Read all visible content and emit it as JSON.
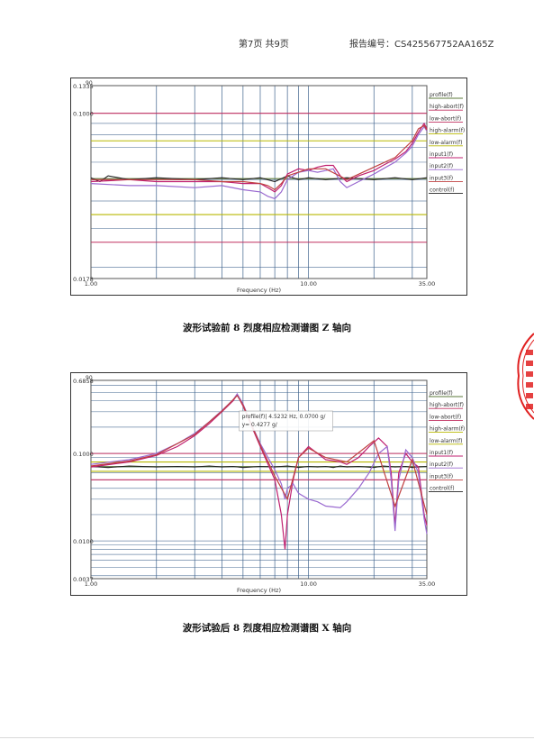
{
  "header": {
    "page_label": "第7页  共9页",
    "report_no": "报告编号：CS425567752AA165Z"
  },
  "colors": {
    "profile": "#5b7a3a",
    "high_abort": "#c03060",
    "low_abort": "#c03060",
    "high_alarm": "#b8b800",
    "low_alarm": "#b8b800",
    "input1": "#c02070",
    "input2": "#9a6ad0",
    "input3": "#c04040",
    "control": "#222222",
    "grid": "#3a5f8a",
    "stamp": "#e02020"
  },
  "chart_data": [
    {
      "type": "line",
      "title": "",
      "xlabel": "Frequency (Hz)",
      "ylabel": "",
      "x_scale": "log",
      "y_scale": "log",
      "xlim": [
        1.0,
        35.0
      ],
      "ylim": [
        0.0178,
        0.1335
      ],
      "corner_label": "90",
      "x_tick_labels": [
        "1.00",
        "10.00",
        "35.00"
      ],
      "x_ticks": [
        1,
        10,
        35
      ],
      "y_tick_labels": [
        "0.1335",
        "0.1000",
        "0.0178"
      ],
      "y_ticks": [
        0.1335,
        0.1,
        0.0178
      ],
      "legend": [
        "profile(f)",
        "high-abort(f)",
        "low-abort(f)",
        "high-alarm(f)",
        "low-alarm(f)",
        "input1(f)",
        "input2(f)",
        "input3(f)",
        "control(f)"
      ],
      "legend_placement": "right",
      "limit_lines": [
        {
          "name": "high-abort",
          "value": 0.1
        },
        {
          "name": "high-alarm",
          "value": 0.075
        },
        {
          "name": "low-alarm",
          "value": 0.0347
        },
        {
          "name": "low-abort",
          "value": 0.026
        }
      ],
      "series": [
        {
          "key": "profile",
          "x": [
            1,
            35
          ],
          "y": [
            0.0505,
            0.0505
          ]
        },
        {
          "key": "control",
          "x": [
            1,
            1.1,
            1.2,
            1.5,
            2,
            3,
            4,
            5,
            6,
            7,
            8,
            9,
            10,
            12,
            15,
            20,
            25,
            30,
            35
          ],
          "y": [
            0.051,
            0.049,
            0.052,
            0.05,
            0.051,
            0.05,
            0.051,
            0.05,
            0.051,
            0.049,
            0.052,
            0.05,
            0.051,
            0.05,
            0.051,
            0.05,
            0.051,
            0.05,
            0.051
          ]
        },
        {
          "key": "input1",
          "x": [
            1,
            1.5,
            2,
            3,
            4,
            5,
            6,
            6.5,
            7,
            7.5,
            8,
            9,
            10,
            11,
            12,
            13,
            14,
            15,
            17,
            20,
            22,
            25,
            28,
            30,
            32,
            34,
            35
          ],
          "y": [
            0.049,
            0.05,
            0.049,
            0.049,
            0.049,
            0.048,
            0.048,
            0.046,
            0.044,
            0.047,
            0.053,
            0.056,
            0.055,
            0.057,
            0.058,
            0.058,
            0.052,
            0.049,
            0.052,
            0.055,
            0.058,
            0.062,
            0.067,
            0.073,
            0.082,
            0.09,
            0.085
          ]
        },
        {
          "key": "input2",
          "x": [
            1,
            1.5,
            2,
            3,
            4,
            5,
            6,
            6.5,
            7,
            7.5,
            8,
            9,
            10,
            11,
            12,
            13,
            14,
            15,
            17,
            20,
            22,
            25,
            28,
            30,
            32,
            34,
            35
          ],
          "y": [
            0.048,
            0.047,
            0.047,
            0.046,
            0.047,
            0.045,
            0.044,
            0.042,
            0.041,
            0.044,
            0.05,
            0.054,
            0.055,
            0.054,
            0.055,
            0.056,
            0.049,
            0.046,
            0.049,
            0.053,
            0.056,
            0.06,
            0.066,
            0.071,
            0.08,
            0.087,
            0.083
          ]
        },
        {
          "key": "input3",
          "x": [
            1,
            2,
            3,
            4,
            5,
            6,
            6.5,
            7,
            7.5,
            8,
            9,
            10,
            12,
            15,
            20,
            25,
            30,
            32,
            34,
            35
          ],
          "y": [
            0.05,
            0.05,
            0.05,
            0.049,
            0.049,
            0.048,
            0.047,
            0.045,
            0.048,
            0.052,
            0.054,
            0.056,
            0.056,
            0.05,
            0.057,
            0.063,
            0.075,
            0.085,
            0.088,
            0.084
          ]
        }
      ],
      "annotation": ""
    },
    {
      "type": "line",
      "title": "",
      "xlabel": "Frequency (Hz)",
      "ylabel": "",
      "x_scale": "log",
      "y_scale": "log",
      "xlim": [
        1.0,
        35.0
      ],
      "ylim": [
        0.0037,
        0.6858
      ],
      "corner_label": "90",
      "x_tick_labels": [
        "1.00",
        "10.00",
        "35.00"
      ],
      "x_ticks": [
        1,
        10,
        35
      ],
      "y_tick_labels": [
        "0.6858",
        "0.1000",
        "0.0100",
        "0.0037"
      ],
      "y_ticks": [
        0.6858,
        0.1,
        0.01,
        0.0037
      ],
      "legend": [
        "profile(f)",
        "high-abort(f)",
        "low-abort(f)",
        "high-alarm(f)",
        "low-alarm(f)",
        "input1(f)",
        "input2(f)",
        "input3(f)",
        "control(f)"
      ],
      "legend_placement": "right",
      "limit_lines": [
        {
          "name": "high-abort",
          "value": 0.1
        },
        {
          "name": "high-alarm",
          "value": 0.08
        },
        {
          "name": "low-alarm",
          "value": 0.0625
        },
        {
          "name": "low-abort",
          "value": 0.05
        }
      ],
      "series": [
        {
          "key": "profile",
          "x": [
            1,
            35
          ],
          "y": [
            0.0707,
            0.0707
          ]
        },
        {
          "key": "control",
          "x": [
            1,
            1.2,
            1.5,
            2,
            2.5,
            3,
            3.5,
            4,
            4.5,
            5,
            6,
            7,
            8,
            9,
            10,
            11,
            12,
            13,
            14,
            15,
            17,
            20,
            22,
            25,
            28,
            30,
            32,
            35
          ],
          "y": [
            0.071,
            0.069,
            0.072,
            0.07,
            0.071,
            0.07,
            0.072,
            0.07,
            0.071,
            0.069,
            0.071,
            0.07,
            0.072,
            0.069,
            0.071,
            0.07,
            0.071,
            0.069,
            0.072,
            0.07,
            0.071,
            0.069,
            0.072,
            0.07,
            0.071,
            0.069,
            0.07,
            0.071
          ]
        },
        {
          "key": "input1",
          "x": [
            1,
            1.5,
            2,
            2.5,
            3,
            3.5,
            4,
            4.5,
            4.7,
            5,
            5.5,
            6,
            7,
            7.5,
            7.8,
            8,
            8.5,
            9,
            10,
            11,
            12,
            14,
            15,
            17,
            19,
            21,
            23,
            24,
            25,
            26,
            28,
            30,
            32,
            34,
            35
          ],
          "y": [
            0.07,
            0.08,
            0.095,
            0.12,
            0.16,
            0.22,
            0.3,
            0.4,
            0.47,
            0.35,
            0.2,
            0.12,
            0.05,
            0.02,
            0.008,
            0.02,
            0.05,
            0.09,
            0.12,
            0.1,
            0.085,
            0.08,
            0.075,
            0.09,
            0.12,
            0.15,
            0.12,
            0.06,
            0.015,
            0.06,
            0.1,
            0.08,
            0.07,
            0.02,
            0.015
          ]
        },
        {
          "key": "input2",
          "x": [
            1,
            1.5,
            2,
            2.5,
            3,
            3.5,
            4,
            4.5,
            4.7,
            5,
            5.5,
            6,
            7,
            7.5,
            7.8,
            8,
            8.5,
            9,
            10,
            11,
            12,
            14,
            15,
            17,
            19,
            21,
            23,
            24,
            25,
            26,
            28,
            30,
            32,
            34,
            35
          ],
          "y": [
            0.075,
            0.085,
            0.1,
            0.13,
            0.17,
            0.23,
            0.31,
            0.41,
            0.48,
            0.37,
            0.21,
            0.13,
            0.065,
            0.045,
            0.03,
            0.04,
            0.045,
            0.035,
            0.03,
            0.028,
            0.025,
            0.024,
            0.028,
            0.04,
            0.06,
            0.1,
            0.12,
            0.05,
            0.013,
            0.05,
            0.11,
            0.09,
            0.06,
            0.018,
            0.012
          ]
        },
        {
          "key": "input3",
          "x": [
            1,
            1.5,
            2,
            3,
            4,
            4.7,
            5,
            6,
            7,
            8,
            9,
            10,
            12,
            15,
            20,
            25,
            30,
            35
          ],
          "y": [
            0.072,
            0.082,
            0.097,
            0.165,
            0.305,
            0.46,
            0.36,
            0.125,
            0.055,
            0.03,
            0.09,
            0.115,
            0.09,
            0.08,
            0.14,
            0.025,
            0.085,
            0.02
          ]
        }
      ],
      "annotation": "profile(f)| 4.5232 Hz, 0.0700 g/\ny= 0.4277 g/"
    }
  ],
  "captions": {
    "chart1": "波形试验前 8 烈度相应检测谱图 Z 轴向",
    "chart2": "波形试验后 8 烈度相应检测谱图 X 轴向"
  }
}
